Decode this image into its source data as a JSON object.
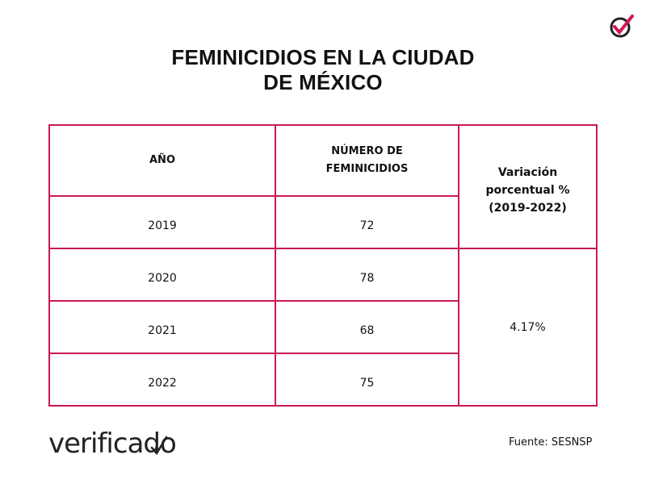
{
  "header": {
    "title_lines": [
      "FEMINICIDIOS EN LA CIUDAD",
      "DE MÉXICO"
    ]
  },
  "table": {
    "headers": [
      [
        "AÑO"
      ],
      [
        "NÚMERO DE",
        "FEMINICIDIOS"
      ],
      [
        "Variación",
        "porcentual %",
        "(2019-2022)"
      ]
    ],
    "rows": [
      [
        2019,
        72
      ],
      [
        2020,
        78
      ],
      [
        2021,
        68
      ],
      [
        2022,
        75
      ]
    ],
    "variation": "4.17%"
  },
  "footer": {
    "brand": "verificado",
    "source": "Fuente: SESNSP"
  }
}
